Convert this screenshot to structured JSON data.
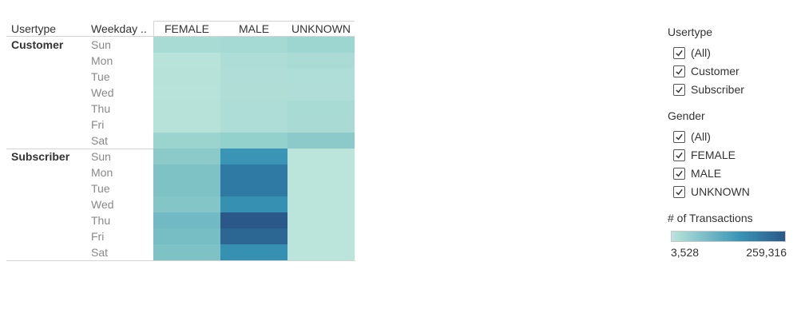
{
  "table": {
    "row_header_1": "Usertype",
    "row_header_2": "Weekday ..",
    "columns": [
      "FEMALE",
      "MALE",
      "UNKNOWN"
    ],
    "groups": [
      {
        "usertype": "Customer",
        "days": [
          "Sun",
          "Mon",
          "Tue",
          "Wed",
          "Thu",
          "Fri",
          "Sat"
        ],
        "colors": [
          [
            "#a9dbd5",
            "#a4d9d4",
            "#9dd6d1"
          ],
          [
            "#b7e3da",
            "#aedcd6",
            "#abdbd5"
          ],
          [
            "#b6e2da",
            "#b0ddd7",
            "#afddd7"
          ],
          [
            "#b7e3da",
            "#b1ddd7",
            "#b0ddd7"
          ],
          [
            "#b6e2da",
            "#aedcd6",
            "#a9dbd5"
          ],
          [
            "#b6e2da",
            "#aedcd6",
            "#a9dad4"
          ],
          [
            "#9bd4cf",
            "#93d1cd",
            "#8bcac9"
          ]
        ]
      },
      {
        "usertype": "Subscriber",
        "days": [
          "Sun",
          "Mon",
          "Tue",
          "Wed",
          "Thu",
          "Fri",
          "Sat"
        ],
        "colors": [
          [
            "#8ccac9",
            "#3a94b5",
            "#bbe4db"
          ],
          [
            "#7ec2c6",
            "#2f7aa5",
            "#bbe4db"
          ],
          [
            "#7ec2c6",
            "#2f7aa5",
            "#bbe4db"
          ],
          [
            "#84c6c8",
            "#3690b2",
            "#bbe4db"
          ],
          [
            "#71bac3",
            "#2a5888",
            "#bbe4db"
          ],
          [
            "#77bec4",
            "#2c6692",
            "#bbe4db"
          ],
          [
            "#7ec2c6",
            "#3690b2",
            "#bbe4db"
          ]
        ]
      }
    ]
  },
  "filters": {
    "usertype": {
      "title": "Usertype",
      "options": [
        "(All)",
        "Customer",
        "Subscriber"
      ]
    },
    "gender": {
      "title": "Gender",
      "options": [
        "(All)",
        "FEMALE",
        "MALE",
        "UNKNOWN"
      ]
    }
  },
  "legend": {
    "title": "# of Transactions",
    "min_label": "3,528",
    "max_label": "259,316",
    "color_start": "#bbe4db",
    "color_mid": "#3a94b5",
    "color_end": "#2a5888"
  }
}
